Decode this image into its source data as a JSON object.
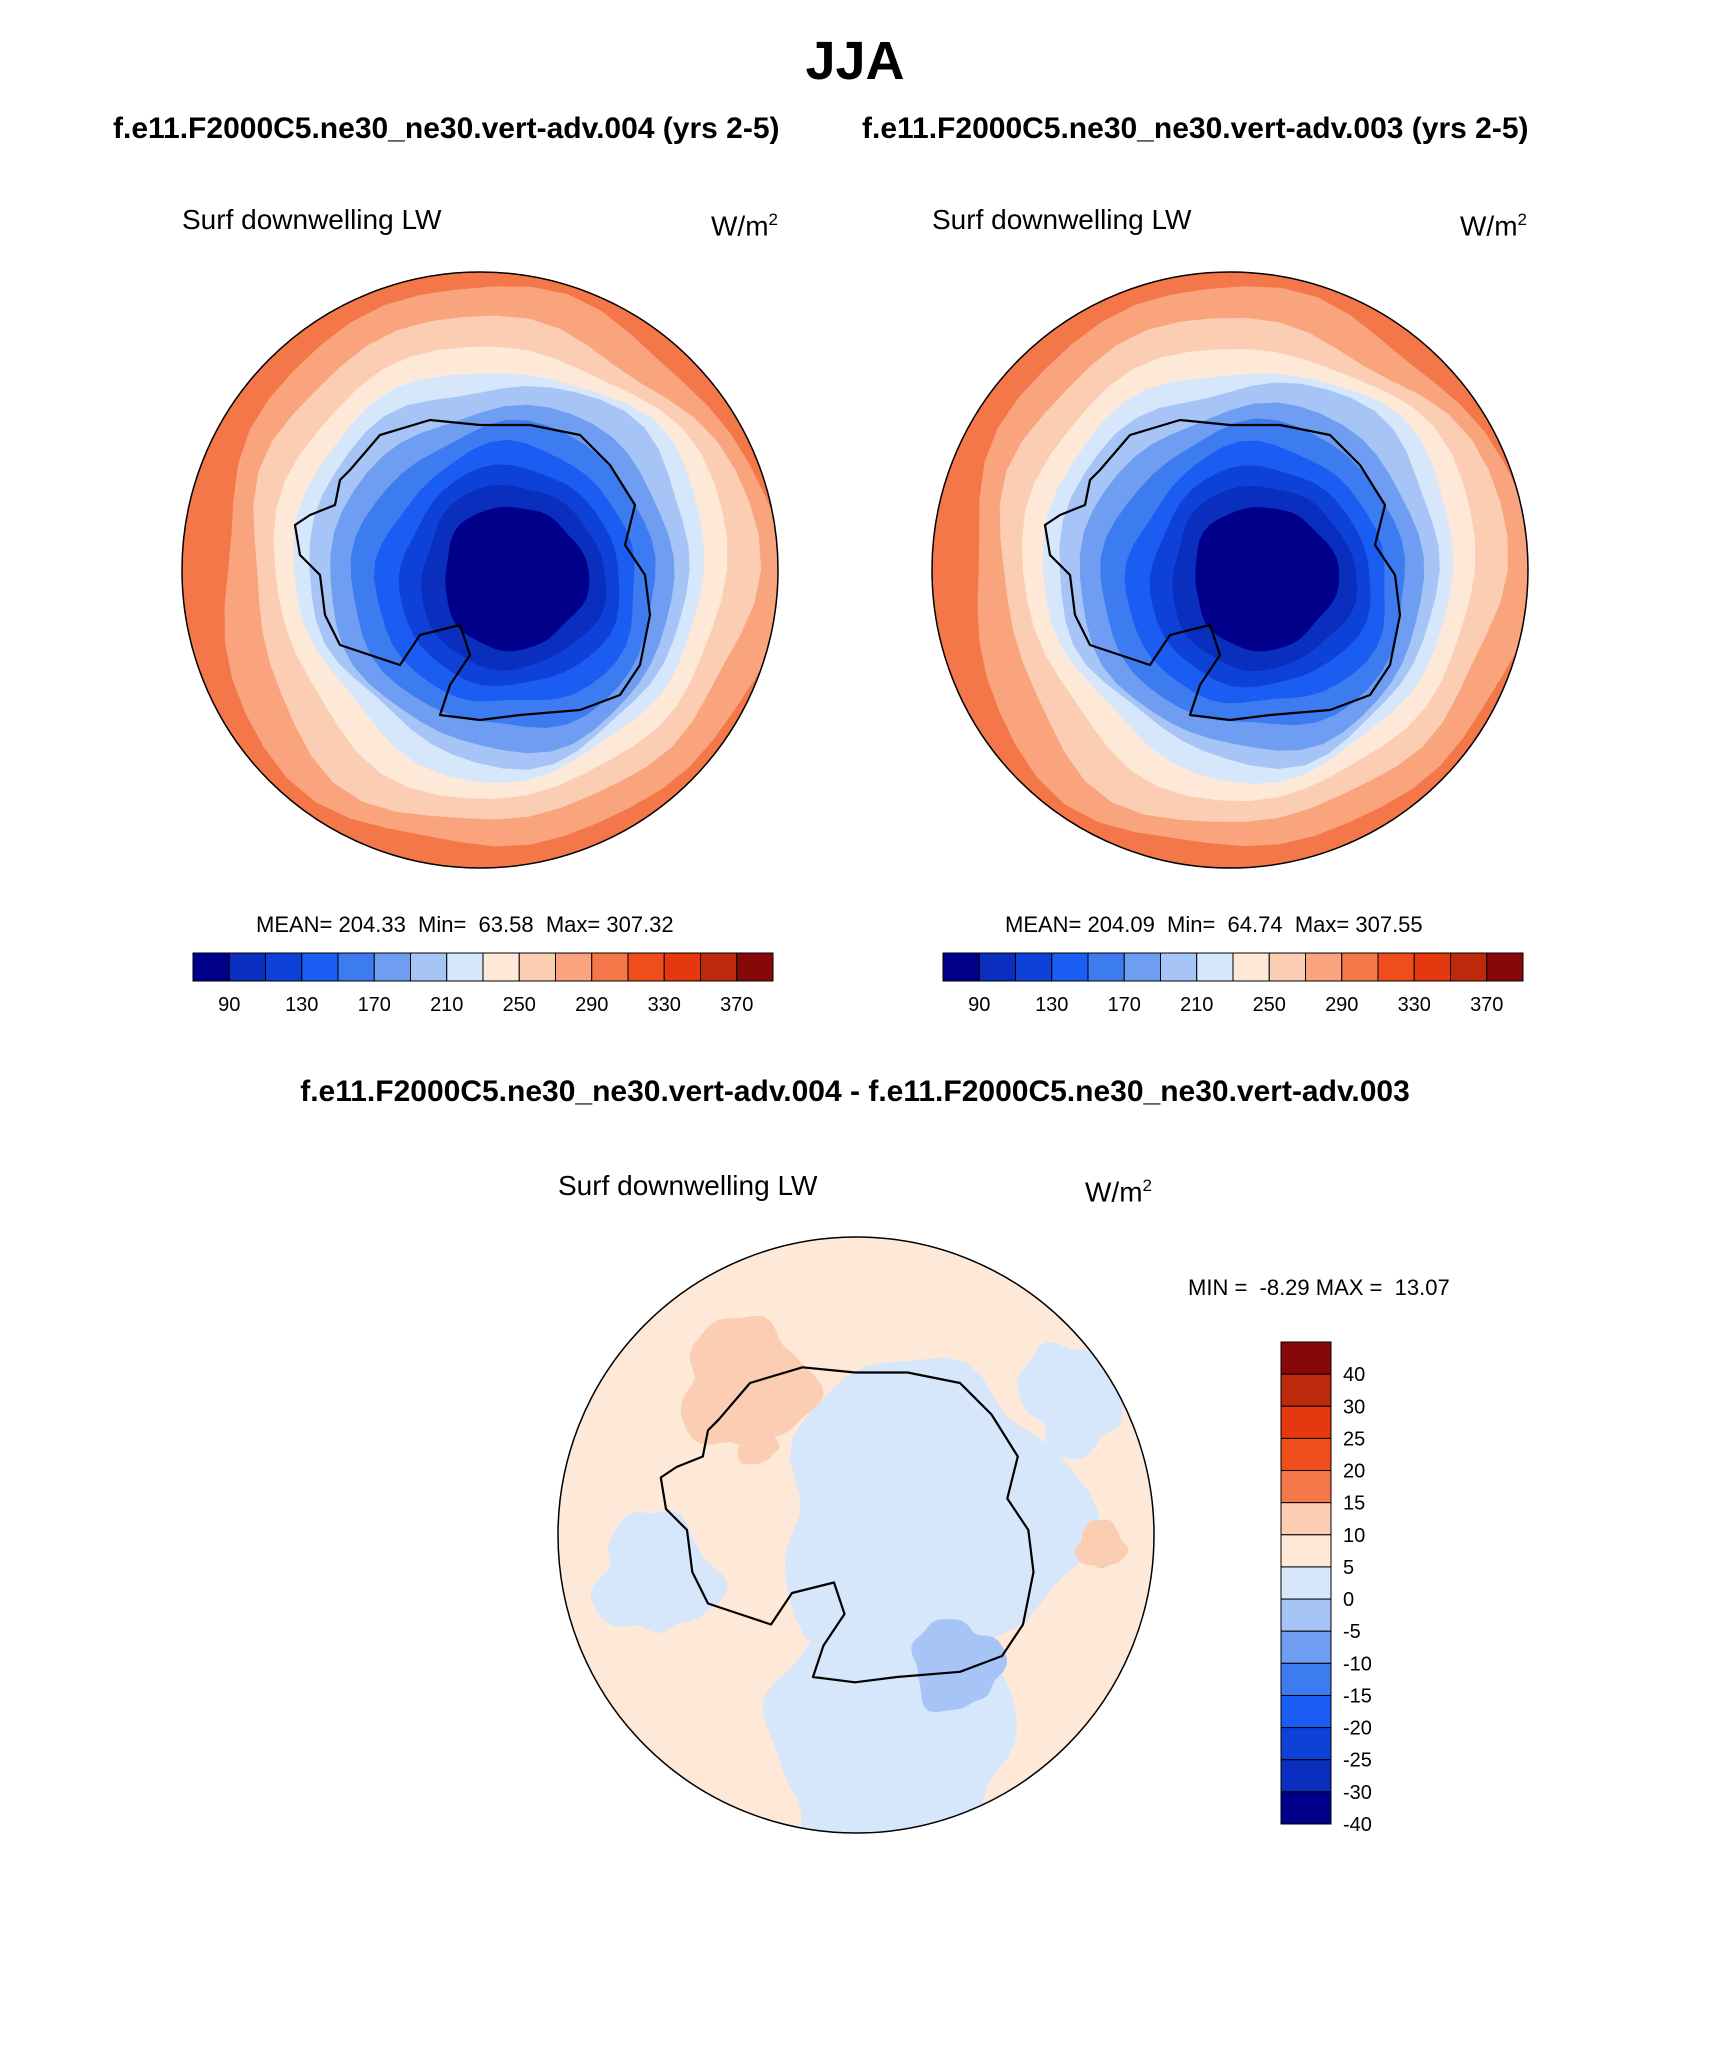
{
  "title": "JJA",
  "case_titles": [
    "f.e11.F2000C5.ne30_ne30.vert-adv.004 (yrs 2-5)",
    "f.e11.F2000C5.ne30_ne30.vert-adv.003 (yrs 2-5)"
  ],
  "diff_title": "f.e11.F2000C5.ne30_ne30.vert-adv.004 - f.e11.F2000C5.ne30_ne30.vert-adv.003",
  "panels": [
    {
      "variable": "Surf downwelling LW",
      "units_base": "W/m",
      "units_exp": "2",
      "stats": "MEAN= 204.33  Min=  63.58  Max= 307.32"
    },
    {
      "variable": "Surf downwelling LW",
      "units_base": "W/m",
      "units_exp": "2",
      "stats": "MEAN= 204.09  Min=  64.74  Max= 307.55"
    }
  ],
  "diff_panel": {
    "variable": "Surf downwelling LW",
    "units_base": "W/m",
    "units_exp": "2",
    "stats": "MIN =  -8.29 MAX =  13.07"
  },
  "field_colorbar": {
    "colors": [
      "#00008b",
      "#0a2fbe",
      "#0e41d8",
      "#1b5df2",
      "#3d7bf0",
      "#6f9df2",
      "#a6c4f6",
      "#d6e6fb",
      "#fee9d8",
      "#fbcdb2",
      "#f9a47d",
      "#f4774a",
      "#f04d1d",
      "#e53810",
      "#bd2a0b",
      "#870808"
    ],
    "labels": [
      "90",
      "130",
      "170",
      "210",
      "250",
      "290",
      "330",
      "370"
    ]
  },
  "diff_colorbar": {
    "colors_top_to_bottom": [
      "#870808",
      "#bd2a0b",
      "#e53810",
      "#f04d1d",
      "#f4774a",
      "#fbcdb2",
      "#fee9d8",
      "#d6e6fb",
      "#a6c4f6",
      "#6f9df2",
      "#3d7bf0",
      "#1b5df2",
      "#0e41d8",
      "#0a2fbe",
      "#00008b"
    ],
    "labels": [
      "40",
      "30",
      "25",
      "20",
      "15",
      "10",
      "5",
      "0",
      "-5",
      "-10",
      "-15",
      "-20",
      "-25",
      "-30",
      "-40"
    ]
  },
  "map_colors": {
    "rings": [
      "#f4774a",
      "#f9a47d",
      "#fbcdb2",
      "#fee9d8",
      "#d6e6fb",
      "#a6c4f6",
      "#6f9df2",
      "#3d7bf0",
      "#1b5df2",
      "#0e41d8",
      "#0a2fbe",
      "#00008b"
    ],
    "diff_base": "#fee9d8",
    "diff_neg": "#d6e6fb",
    "diff_neg2": "#a6c4f6",
    "diff_pos": "#fbcdb2",
    "coast": "#000000"
  }
}
